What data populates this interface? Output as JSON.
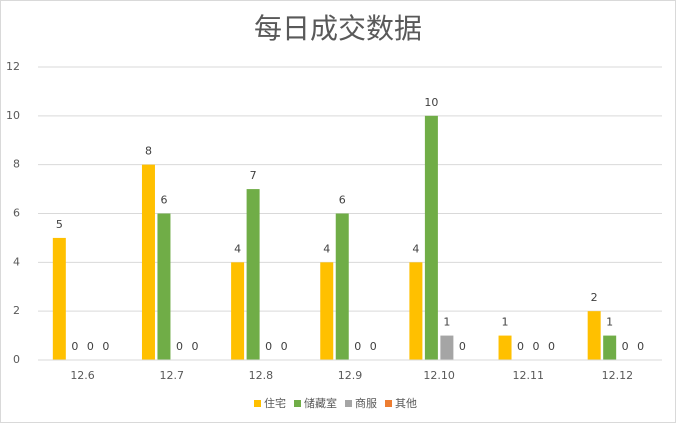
{
  "chart_data": {
    "type": "bar",
    "title": "每日成交数据",
    "categories": [
      "12.6",
      "12.7",
      "12.8",
      "12.9",
      "12.10",
      "12.11",
      "12.12"
    ],
    "series": [
      {
        "name": "住宅",
        "color": "#FFC000",
        "values": [
          5,
          8,
          4,
          4,
          4,
          1,
          2
        ]
      },
      {
        "name": "储藏室",
        "color": "#70AD47",
        "values": [
          0,
          6,
          7,
          6,
          10,
          0,
          1
        ]
      },
      {
        "name": "商服",
        "color": "#A5A5A5",
        "values": [
          0,
          0,
          0,
          0,
          1,
          0,
          0
        ]
      },
      {
        "name": "其他",
        "color": "#ED7D31",
        "values": [
          0,
          0,
          0,
          0,
          0,
          0,
          0
        ]
      }
    ],
    "ylim": [
      0,
      12
    ],
    "yticks": [
      0,
      2,
      4,
      6,
      8,
      10,
      12
    ],
    "grid": true,
    "legend": "bottom"
  }
}
